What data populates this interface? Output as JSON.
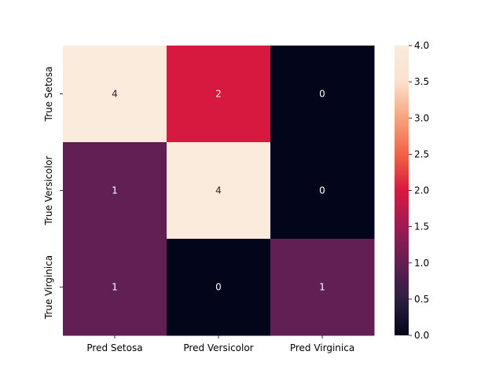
{
  "chart_data": {
    "type": "heatmap",
    "title": "",
    "xlabel": "",
    "ylabel": "",
    "x_categories": [
      "Pred Setosa",
      "Pred Versicolor",
      "Pred Virginica"
    ],
    "y_categories": [
      "True Setosa",
      "True Versicolor",
      "True Virginica"
    ],
    "values": [
      [
        4,
        2,
        0
      ],
      [
        1,
        4,
        0
      ],
      [
        1,
        0,
        1
      ]
    ],
    "colorbar": {
      "min": 0.0,
      "max": 4.0,
      "ticks": [
        "0.0",
        "0.5",
        "1.0",
        "1.5",
        "2.0",
        "2.5",
        "3.0",
        "3.5",
        "4.0"
      ]
    },
    "colormap": "rocket",
    "colormap_stops": [
      "#03051a",
      "#2e1e42",
      "#611f53",
      "#9f1a54",
      "#d7193f",
      "#f16445",
      "#f7a37d",
      "#fae1cc",
      "#faebdd"
    ],
    "annotations": true,
    "annotation_dark_text_color": "#262626",
    "annotation_light_text_color": "#ffffff",
    "grid": false
  }
}
